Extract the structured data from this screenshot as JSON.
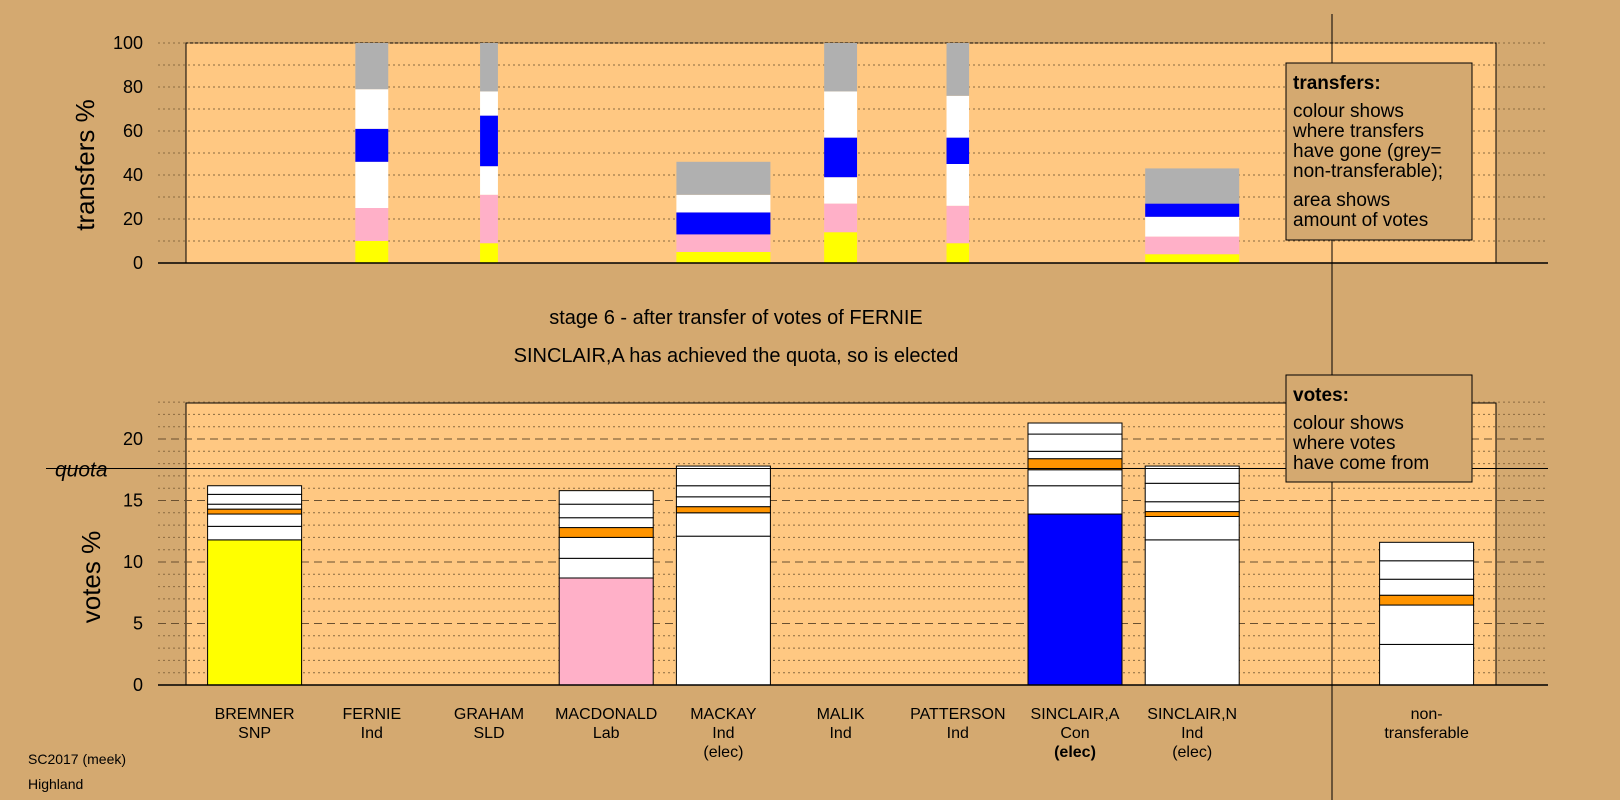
{
  "chart_data": [
    {
      "type": "bar",
      "stacked": true,
      "ylabel": "transfers %",
      "ylim": [
        0,
        100
      ],
      "yticks": [
        0,
        20,
        40,
        60,
        80,
        100
      ],
      "grid": true,
      "legend": {
        "title": "transfers:",
        "lines_a": [
          "colour shows",
          "where transfers",
          "have gone (grey=",
          "non-transferable);"
        ],
        "lines_b": [
          "area shows",
          "amount of votes"
        ]
      },
      "bars": [
        {
          "slot": 1.5,
          "width_scale": 0.35,
          "segments": [
            {
              "color": "yellow",
              "value": 10
            },
            {
              "color": "pink",
              "value": 15
            },
            {
              "color": "white",
              "value": 21
            },
            {
              "color": "blue",
              "value": 15
            },
            {
              "color": "white",
              "value": 18
            },
            {
              "color": "grey",
              "value": 21
            }
          ]
        },
        {
          "slot": 2.5,
          "width_scale": 0.19,
          "segments": [
            {
              "color": "yellow",
              "value": 9
            },
            {
              "color": "pink",
              "value": 22
            },
            {
              "color": "white",
              "value": 13
            },
            {
              "color": "blue",
              "value": 23
            },
            {
              "color": "white",
              "value": 11
            },
            {
              "color": "grey",
              "value": 22
            }
          ]
        },
        {
          "slot": 4.5,
          "width_scale": 1.0,
          "segments": [
            {
              "color": "yellow",
              "value": 5
            },
            {
              "color": "pink",
              "value": 8
            },
            {
              "color": "blue",
              "value": 10
            },
            {
              "color": "white",
              "value": 8
            },
            {
              "color": "grey",
              "value": 15
            }
          ]
        },
        {
          "slot": 5.5,
          "width_scale": 0.35,
          "segments": [
            {
              "color": "yellow",
              "value": 14
            },
            {
              "color": "pink",
              "value": 13
            },
            {
              "color": "white",
              "value": 12
            },
            {
              "color": "blue",
              "value": 18
            },
            {
              "color": "white",
              "value": 21
            },
            {
              "color": "grey",
              "value": 22
            }
          ]
        },
        {
          "slot": 6.5,
          "width_scale": 0.24,
          "segments": [
            {
              "color": "yellow",
              "value": 9
            },
            {
              "color": "pink",
              "value": 17
            },
            {
              "color": "white",
              "value": 19
            },
            {
              "color": "blue",
              "value": 12
            },
            {
              "color": "white",
              "value": 19
            },
            {
              "color": "grey",
              "value": 24
            }
          ]
        },
        {
          "slot": 8.5,
          "width_scale": 1.0,
          "segments": [
            {
              "color": "yellow",
              "value": 4
            },
            {
              "color": "pink",
              "value": 8
            },
            {
              "color": "white",
              "value": 9
            },
            {
              "color": "blue",
              "value": 6
            },
            {
              "color": "grey",
              "value": 16
            }
          ]
        }
      ]
    },
    {
      "type": "bar",
      "stacked": true,
      "ylabel": "votes %",
      "ylim": [
        0,
        23
      ],
      "yticks": [
        0,
        5,
        10,
        15,
        20
      ],
      "grid": true,
      "quota": 17.6,
      "quota_label": "quota",
      "legend": {
        "title": "votes:",
        "lines_a": [
          "colour shows",
          "where votes",
          "have come from"
        ]
      },
      "candidates": [
        {
          "name": "BREMNER",
          "party": "SNP",
          "status": "",
          "total": 16.2,
          "segments": [
            {
              "color": "yellow",
              "value": 11.8
            },
            {
              "color": "white",
              "value": 1.1
            },
            {
              "color": "white",
              "value": 1.0
            },
            {
              "color": "orange",
              "value": 0.4
            },
            {
              "color": "white",
              "value": 0.4
            },
            {
              "color": "white",
              "value": 0.8
            },
            {
              "color": "white",
              "value": 0.7
            }
          ]
        },
        {
          "name": "FERNIE",
          "party": "Ind",
          "status": "",
          "total": 0,
          "segments": []
        },
        {
          "name": "GRAHAM",
          "party": "SLD",
          "status": "",
          "total": 0,
          "segments": []
        },
        {
          "name": "MACDONALD",
          "party": "Lab",
          "status": "",
          "total": 15.8,
          "segments": [
            {
              "color": "pink",
              "value": 8.7
            },
            {
              "color": "white",
              "value": 1.6
            },
            {
              "color": "white",
              "value": 1.7
            },
            {
              "color": "orange",
              "value": 0.8
            },
            {
              "color": "white",
              "value": 0.8
            },
            {
              "color": "white",
              "value": 1.1
            },
            {
              "color": "white",
              "value": 1.1
            }
          ]
        },
        {
          "name": "MACKAY",
          "party": "Ind",
          "status": "(elec)",
          "total": 17.8,
          "segments": [
            {
              "color": "white",
              "value": 12.1
            },
            {
              "color": "white",
              "value": 1.9
            },
            {
              "color": "orange",
              "value": 0.5
            },
            {
              "color": "white",
              "value": 0.8
            },
            {
              "color": "white",
              "value": 0.9
            },
            {
              "color": "white",
              "value": 1.6
            }
          ]
        },
        {
          "name": "MALIK",
          "party": "Ind",
          "status": "",
          "total": 0,
          "segments": []
        },
        {
          "name": "PATTERSON",
          "party": "Ind",
          "status": "",
          "total": 0,
          "segments": []
        },
        {
          "name": "SINCLAIR,A",
          "party": "Con",
          "status": "(elec)",
          "total": 21.3,
          "segments": [
            {
              "color": "blue",
              "value": 13.9
            },
            {
              "color": "white",
              "value": 2.3
            },
            {
              "color": "white",
              "value": 1.3
            },
            {
              "color": "orange",
              "value": 0.9
            },
            {
              "color": "white",
              "value": 0.6
            },
            {
              "color": "white",
              "value": 1.4
            },
            {
              "color": "white",
              "value": 0.9
            }
          ]
        },
        {
          "name": "SINCLAIR,N",
          "party": "Ind",
          "status": "(elec)",
          "total": 17.8,
          "segments": [
            {
              "color": "white",
              "value": 11.8
            },
            {
              "color": "white",
              "value": 1.9
            },
            {
              "color": "orange",
              "value": 0.4
            },
            {
              "color": "white",
              "value": 0.8
            },
            {
              "color": "white",
              "value": 1.5
            },
            {
              "color": "white",
              "value": 1.4
            }
          ]
        },
        {
          "name": "non-",
          "party": "transferable",
          "status": "",
          "total": 11.6,
          "segments": [
            {
              "color": "white",
              "value": 3.3
            },
            {
              "color": "white",
              "value": 3.2
            },
            {
              "color": "orange",
              "value": 0.8
            },
            {
              "color": "white",
              "value": 1.3
            },
            {
              "color": "white",
              "value": 1.5
            },
            {
              "color": "white",
              "value": 1.5
            }
          ]
        }
      ]
    }
  ],
  "stage_title": "stage 6 - after transfer of votes of FERNIE",
  "stage_subtitle": "SINCLAIR,A has achieved the quota, so is elected",
  "footer": {
    "line1": "SC2017 (meek)",
    "line2": "Highland"
  },
  "colors": {
    "background": "#d4a970",
    "plot_fill": "#ffc882",
    "yellow": "#ffff00",
    "pink": "#ffb0c8",
    "white": "#ffffff",
    "blue": "#0000ff",
    "grey": "#b0b0b0",
    "orange": "#ff9400"
  }
}
